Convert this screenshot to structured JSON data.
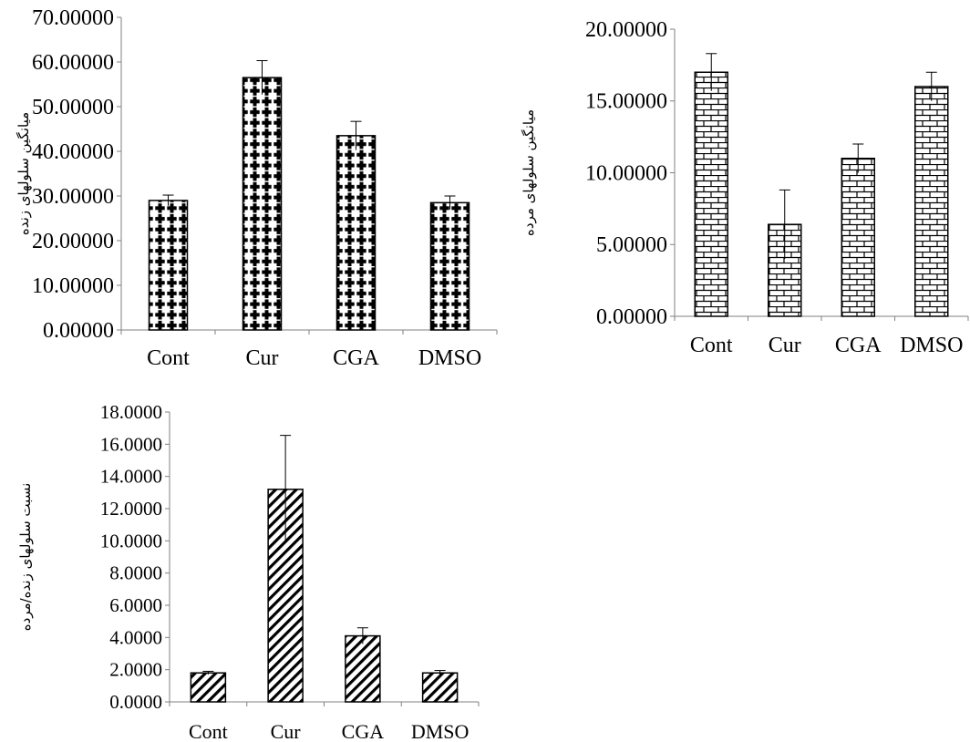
{
  "chart_data": [
    {
      "type": "bar",
      "categories": [
        "Cont",
        "Cur",
        "CGA",
        "DMSO"
      ],
      "values": [
        29.0,
        56.5,
        43.5,
        28.5
      ],
      "errors": [
        1.2,
        3.8,
        3.2,
        1.5
      ],
      "yticks": [
        "0.00000",
        "10.00000",
        "20.00000",
        "30.00000",
        "40.00000",
        "50.00000",
        "60.00000",
        "70.00000"
      ],
      "ylim": [
        0,
        70
      ],
      "ylabel": "میانگین سلولهای زنده",
      "pattern": "dots",
      "grid": false,
      "legend": "none"
    },
    {
      "type": "bar",
      "categories": [
        "Cont",
        "Cur",
        "CGA",
        "DMSO"
      ],
      "values": [
        17.0,
        6.4,
        11.0,
        16.0
      ],
      "errors": [
        1.3,
        2.4,
        1.0,
        1.0
      ],
      "yticks": [
        "0.00000",
        "5.00000",
        "10.00000",
        "15.00000",
        "20.00000"
      ],
      "ylim": [
        0,
        20
      ],
      "ylabel": "میانگین سلولهای مرده",
      "pattern": "bricks",
      "grid": false,
      "legend": "none"
    },
    {
      "type": "bar",
      "categories": [
        "Cont",
        "Cur",
        "CGA",
        "DMSO"
      ],
      "values": [
        1.8,
        13.2,
        4.1,
        1.8
      ],
      "errors": [
        0.1,
        3.35,
        0.5,
        0.15
      ],
      "yticks": [
        "0.0000",
        "2.0000",
        "4.0000",
        "6.0000",
        "8.0000",
        "10.0000",
        "12.0000",
        "14.0000",
        "16.0000",
        "18.0000"
      ],
      "ylim": [
        0,
        18
      ],
      "ylabel": "نسبت سلولهای زنده/مرده",
      "pattern": "hatch",
      "grid": false,
      "legend": "none"
    }
  ]
}
